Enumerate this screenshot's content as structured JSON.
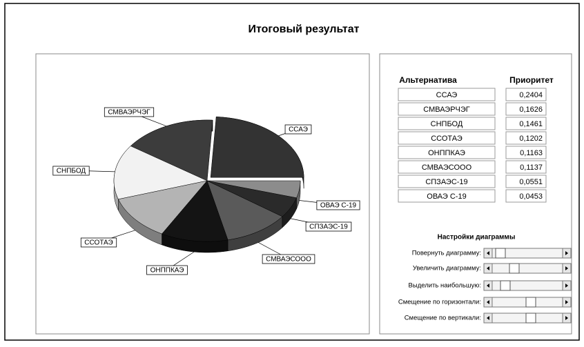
{
  "window": {
    "title": "Итоговый результат"
  },
  "chart_data": {
    "type": "pie",
    "categories": [
      "ССАЭ",
      "СМВАЭРЧЭГ",
      "СНПБОД",
      "ССОТАЭ",
      "ОНППКАЭ",
      "СМВАЭСООО",
      "СПЗАЭС-19",
      "ОВАЭ С-19"
    ],
    "values": [
      0.2404,
      0.1626,
      0.1461,
      0.1202,
      0.1163,
      0.1137,
      0.0551,
      0.0453
    ],
    "value_labels": [
      "0,2404",
      "0,1626",
      "0,1461",
      "0,1202",
      "0,1163",
      "0,1137",
      "0,0551",
      "0,0453"
    ],
    "colors": [
      "#333333",
      "#3c3c3c",
      "#f2f2f2",
      "#b4b4b4",
      "#141414",
      "#5a5a5a",
      "#2a2a2a",
      "#8c8c8c"
    ]
  },
  "table": {
    "headers": [
      "Альтернатива",
      "Приоритет"
    ]
  },
  "settings": {
    "title": "Настройки диаграммы",
    "sliders": [
      "Повернуть диаграмму:",
      "Увеличить диаграмму:",
      "Выделить наибольшую:",
      "Смещение по горизонтали:",
      "Смещение по вертикали:"
    ]
  }
}
